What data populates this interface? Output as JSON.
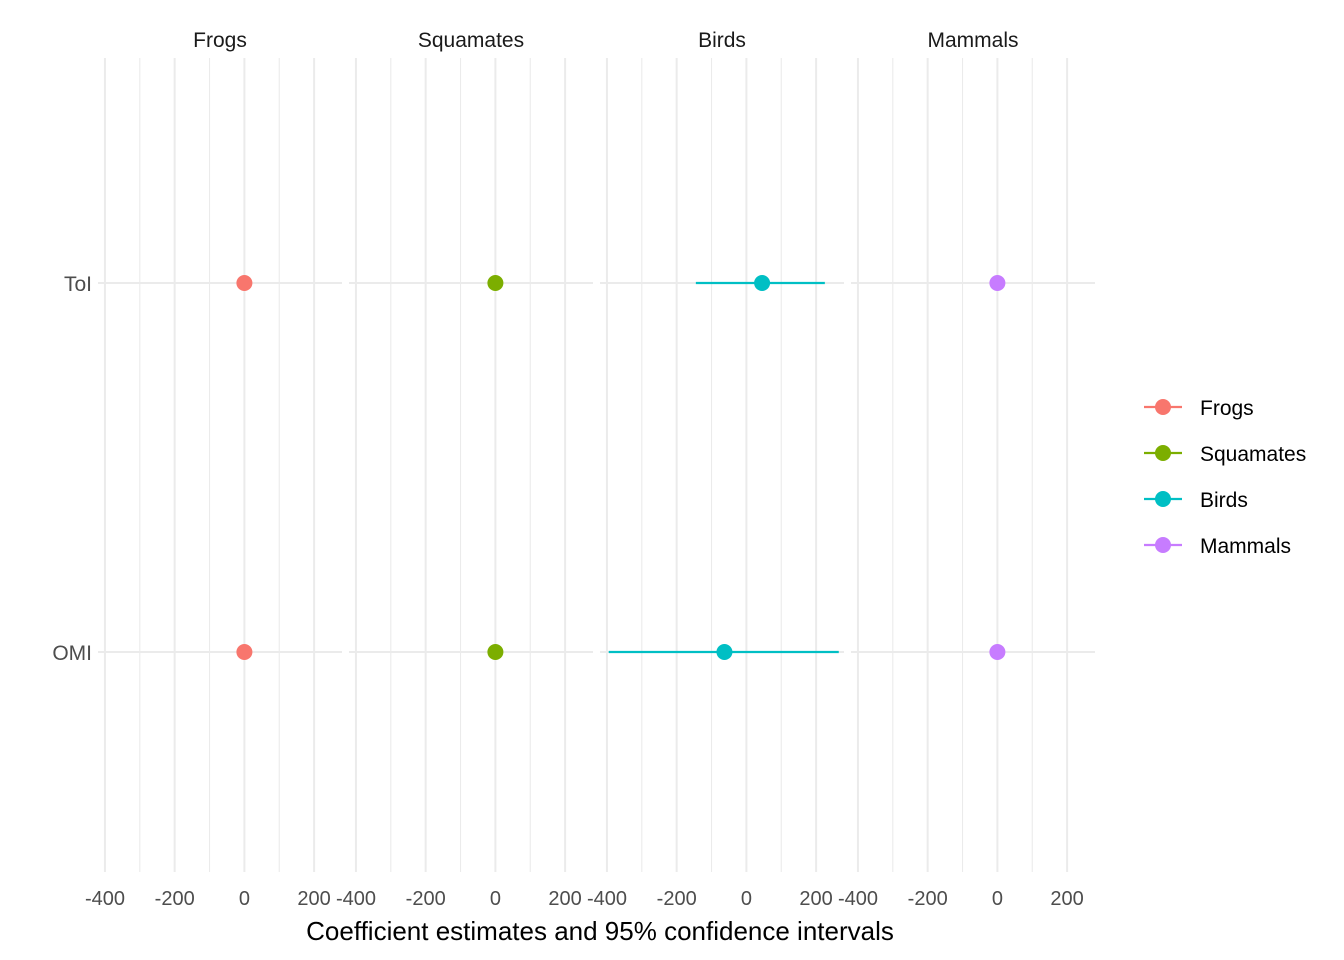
{
  "chart_data": {
    "type": "scatter",
    "subtype": "coefficient-plot-with-confidence-intervals",
    "xlabel": "Coefficient estimates and 95% confidence intervals",
    "ylabel": "",
    "facets": [
      "Frogs",
      "Squamates",
      "Birds",
      "Mammals"
    ],
    "categories": [
      "ToI",
      "OMI"
    ],
    "xlim": [
      -420,
      280
    ],
    "xticks": [
      -400,
      -200,
      0,
      200
    ],
    "xtick_labels": [
      "-400",
      "-200",
      "0",
      "200"
    ],
    "grid": true,
    "legend_position": "right",
    "series": [
      {
        "name": "Frogs",
        "color": "#F8766D",
        "points": [
          {
            "category": "ToI",
            "estimate": 0,
            "low": 0,
            "high": 0
          },
          {
            "category": "OMI",
            "estimate": 0,
            "low": 0,
            "high": 0
          }
        ]
      },
      {
        "name": "Squamates",
        "color": "#7CAE00",
        "points": [
          {
            "category": "ToI",
            "estimate": 0,
            "low": 0,
            "high": 0
          },
          {
            "category": "OMI",
            "estimate": 0,
            "low": 0,
            "high": 0
          }
        ]
      },
      {
        "name": "Birds",
        "color": "#00BFC4",
        "points": [
          {
            "category": "ToI",
            "estimate": 45,
            "low": -145,
            "high": 225
          },
          {
            "category": "OMI",
            "estimate": -63,
            "low": -395,
            "high": 265
          }
        ]
      },
      {
        "name": "Mammals",
        "color": "#C77CFF",
        "points": [
          {
            "category": "ToI",
            "estimate": 0,
            "low": 0,
            "high": 0
          },
          {
            "category": "OMI",
            "estimate": 0,
            "low": 0,
            "high": 0
          }
        ]
      }
    ]
  }
}
